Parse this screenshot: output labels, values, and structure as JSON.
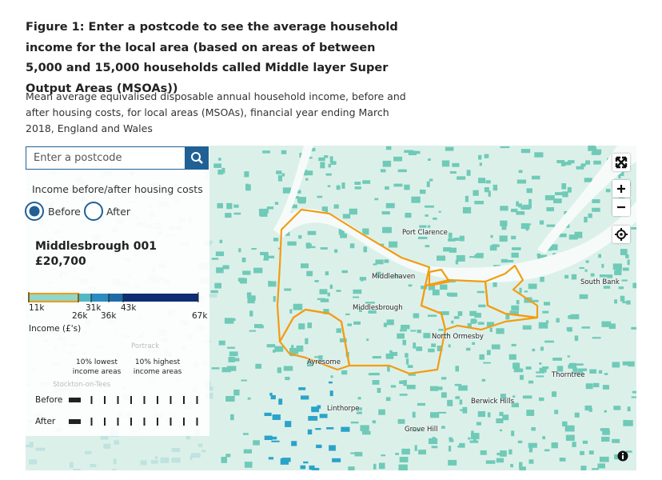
{
  "header": {
    "title": "Figure 1: Enter a postcode to see the average household income for the local area (based on areas of between 5,000 and 15,000 households called Middle layer Super Output Areas (MSOAs))",
    "subtitle": "Mean average equivalised disposable annual household income, before and after housing costs, for local areas (MSOAs), financial year ending March 2018, England and Wales"
  },
  "search": {
    "placeholder": "Enter a postcode"
  },
  "toggle": {
    "label": "Income before/after housing costs",
    "options": [
      "Before",
      "After"
    ],
    "selected": 0
  },
  "area": {
    "name": "Middlesbrough 001",
    "income": "£20,700"
  },
  "legend": {
    "ticks": [
      "11k",
      "26k",
      "31k",
      "36k",
      "43k",
      "67k"
    ],
    "axis_label": "Income (£'s)"
  },
  "deciles": {
    "lowest": "10% lowest income areas",
    "highest": "10% highest income areas",
    "rows": [
      "Before",
      "After"
    ]
  },
  "map": {
    "places": [
      "Port Clarence",
      "Middlehaven",
      "Middlesbrough",
      "South Bank",
      "North Ormesby",
      "Ayresome",
      "Thorntree",
      "Berwick Hills",
      "Linthorpe",
      "Grove Hill"
    ],
    "faint_places": [
      "Portrack",
      "Stockton-on-Tees"
    ]
  }
}
